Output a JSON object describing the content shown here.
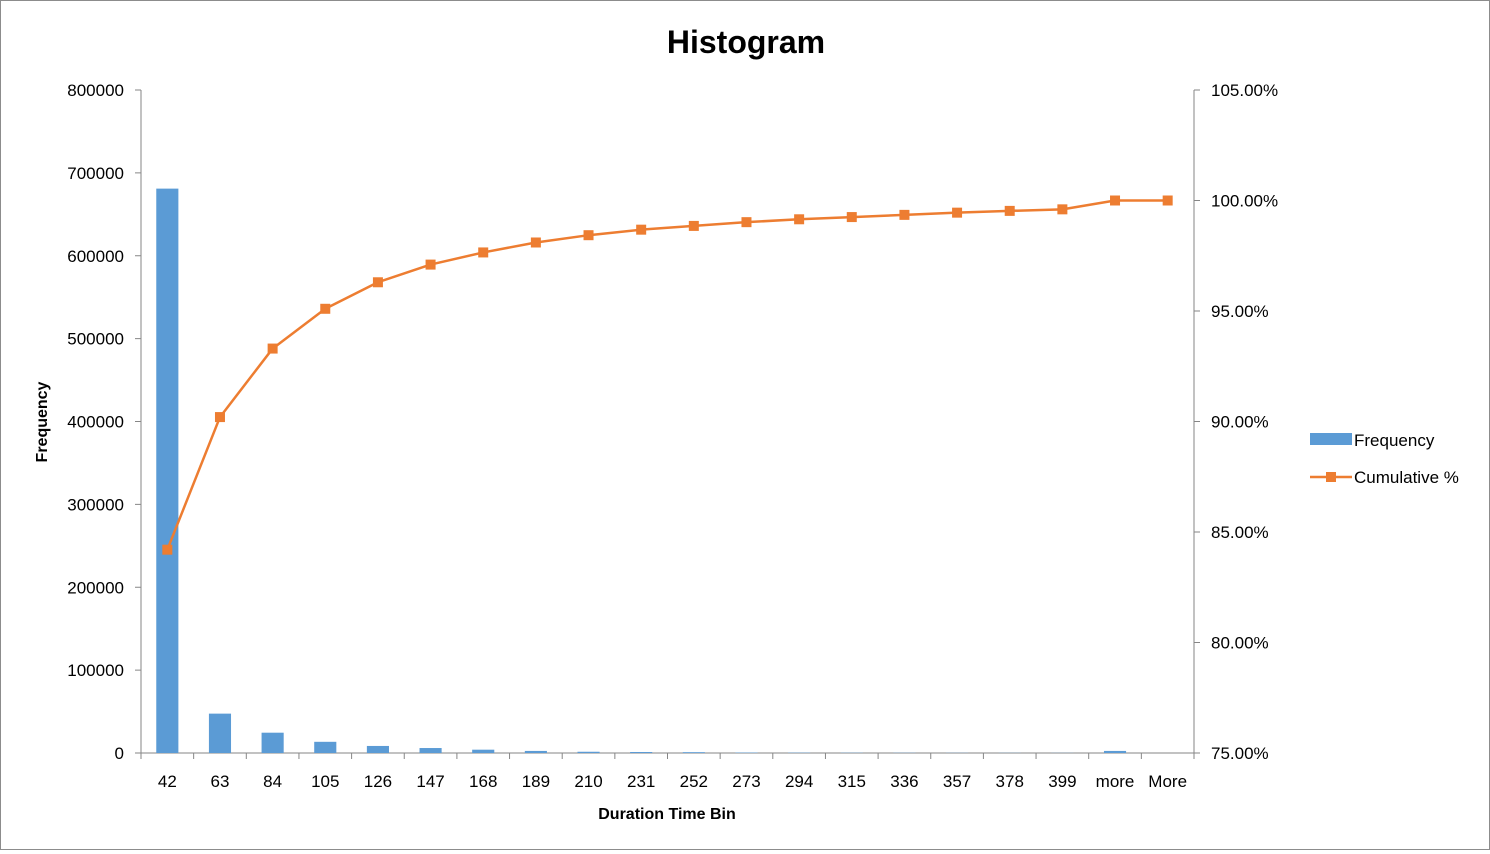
{
  "chart_data": {
    "type": "bar",
    "title": "Histogram",
    "xlabel": "Duration Time Bin",
    "ylabel": "Frequency",
    "categories": [
      "42",
      "63",
      "84",
      "105",
      "126",
      "147",
      "168",
      "189",
      "210",
      "231",
      "252",
      "273",
      "294",
      "315",
      "336",
      "357",
      "378",
      "399",
      "more",
      "More"
    ],
    "ylim": [
      0,
      800000
    ],
    "yticks": [
      "0",
      "100000",
      "200000",
      "300000",
      "400000",
      "500000",
      "600000",
      "700000",
      "800000"
    ],
    "y2lim": [
      0.75,
      1.05
    ],
    "y2ticks": [
      "75.00%",
      "80.00%",
      "85.00%",
      "90.00%",
      "95.00%",
      "100.00%",
      "105.00%"
    ],
    "grid": false,
    "legend_position": "right",
    "series": [
      {
        "name": "Frequency",
        "kind": "bar",
        "axis": "left",
        "color": "#5b9bd5",
        "values": [
          681000,
          47500,
          24500,
          13500,
          8500,
          6000,
          4000,
          2500,
          1500,
          1200,
          1000,
          500,
          400,
          300,
          250,
          200,
          180,
          150,
          2500,
          0
        ]
      },
      {
        "name": "Cumulative %",
        "kind": "line",
        "axis": "right",
        "color": "#ed7d31",
        "marker": "square",
        "values": [
          0.842,
          0.902,
          0.933,
          0.951,
          0.963,
          0.971,
          0.9765,
          0.981,
          0.9843,
          0.9868,
          0.9885,
          0.9902,
          0.9915,
          0.9925,
          0.9935,
          0.9945,
          0.9953,
          0.996,
          1.0,
          1.0
        ]
      }
    ]
  }
}
